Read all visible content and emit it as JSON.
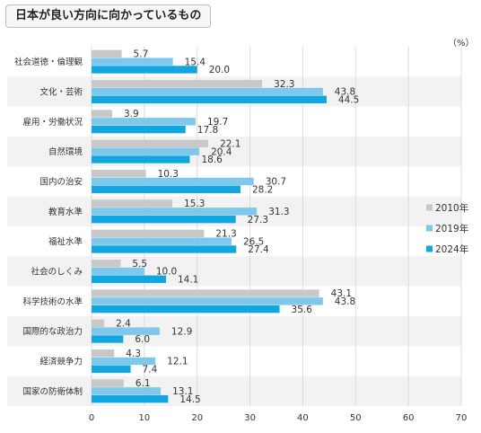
{
  "chart_data": {
    "type": "bar",
    "orientation": "horizontal",
    "title": "日本が良い方向に向かっているもの",
    "unit": "（%）",
    "categories": [
      "社会道徳・倫理観",
      "文化・芸術",
      "雇用・労働状況",
      "自然環境",
      "国内の治安",
      "教育水準",
      "福祉水準",
      "社会のしくみ",
      "科学技術の水準",
      "国際的な政治力",
      "経済競争力",
      "国家の防衛体制"
    ],
    "series": [
      {
        "name": "2010年",
        "color": "#c8c8c8",
        "values": [
          5.7,
          32.3,
          3.9,
          22.1,
          10.3,
          15.3,
          21.3,
          5.5,
          43.1,
          2.4,
          4.3,
          6.1
        ]
      },
      {
        "name": "2019年",
        "color": "#7ec8ec",
        "values": [
          15.4,
          43.8,
          19.7,
          20.4,
          30.7,
          31.3,
          26.5,
          10.0,
          43.8,
          12.9,
          12.1,
          13.1
        ]
      },
      {
        "name": "2024年",
        "color": "#12a6e0",
        "values": [
          20.0,
          44.5,
          17.8,
          18.6,
          28.2,
          27.3,
          27.4,
          14.1,
          35.6,
          6.0,
          7.4,
          14.5
        ]
      }
    ],
    "xlim": [
      0,
      70
    ],
    "xticks": [
      0,
      10,
      20,
      30,
      40,
      50,
      60,
      70
    ],
    "grid": true,
    "legend_position": "right"
  }
}
